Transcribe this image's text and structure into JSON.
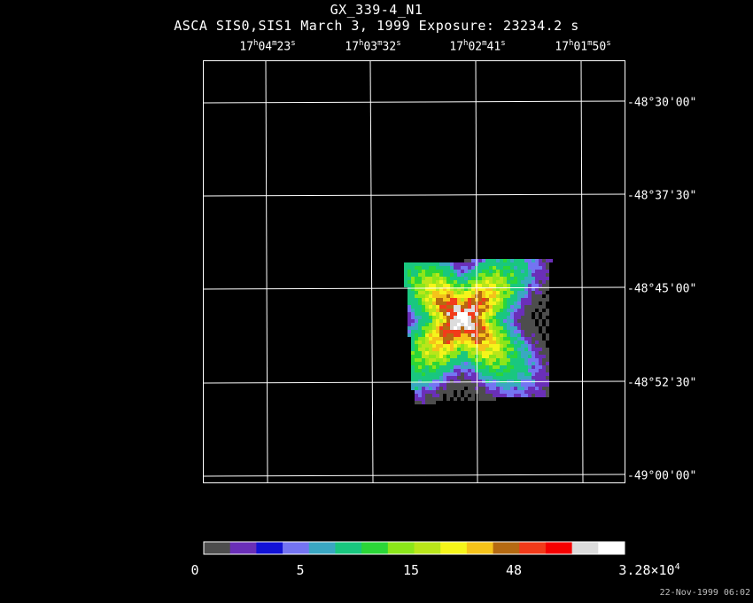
{
  "header": {
    "title": "GX_339-4_N1",
    "subtitle": "ASCA SIS0,SIS1 March 3, 1999 Exposure: 23234.2 s"
  },
  "ra_ticks": [
    {
      "h": "17",
      "m": "04",
      "s": "23"
    },
    {
      "h": "17",
      "m": "03",
      "s": "32"
    },
    {
      "h": "17",
      "m": "02",
      "s": "41"
    },
    {
      "h": "17",
      "m": "01",
      "s": "50"
    }
  ],
  "dec_ticks": [
    "-48°30'00\"",
    "-48°37'30\"",
    "-48°45'00\"",
    "-48°52'30\"",
    "-49°00'00\""
  ],
  "colorbar": {
    "colors": [
      "#4d4d4d",
      "#6a2fb8",
      "#1212d6",
      "#7474f2",
      "#3aa7c2",
      "#19c77f",
      "#2bd638",
      "#8be61a",
      "#b9e61a",
      "#f5f51a",
      "#f5c31a",
      "#b56a12",
      "#f23b1a",
      "#f50000",
      "#dcdcdc",
      "#ffffff"
    ],
    "labels": [
      "0",
      "5",
      "15",
      "48",
      "3.28×10"
    ],
    "exponent": "4"
  },
  "timestamp": "22-Nov-1999 06:02"
}
